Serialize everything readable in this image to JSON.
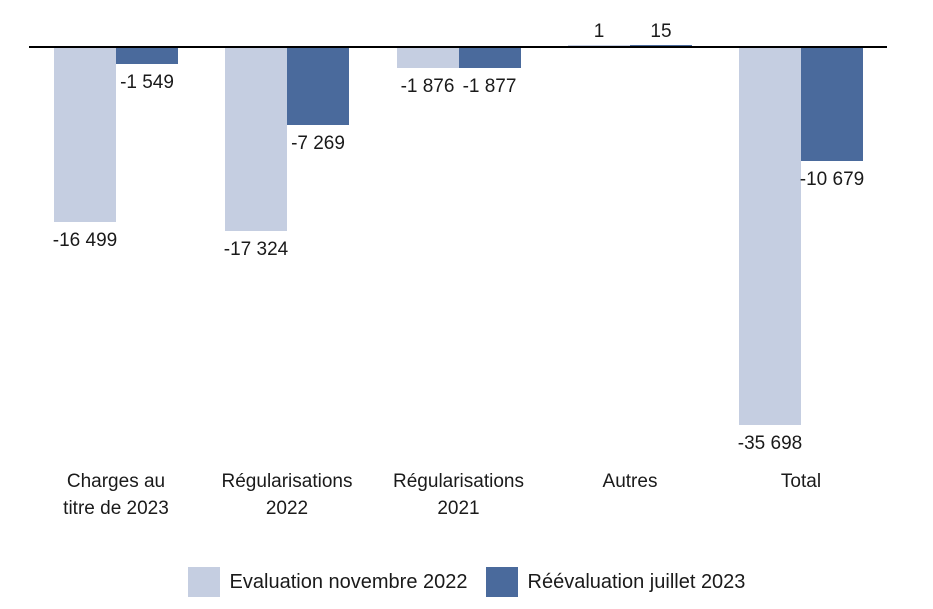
{
  "chart_data": {
    "type": "bar",
    "title": "",
    "xlabel": "",
    "ylabel": "",
    "value_axis_visible": false,
    "grid": false,
    "baseline_value": 0,
    "ylim": [
      -38000,
      2000
    ],
    "legend_position": "bottom",
    "background_color": "#ffffff",
    "axis_line_color": "#000000",
    "text_color": "#1a1a1a",
    "categories": [
      {
        "label": "Charges au titre de 2023",
        "lines": [
          "Charges au",
          "titre de 2023"
        ]
      },
      {
        "label": "Régularisations 2022",
        "lines": [
          "Régularisations",
          "2022"
        ]
      },
      {
        "label": "Régularisations 2021",
        "lines": [
          "Régularisations",
          "2021"
        ]
      },
      {
        "label": "Autres",
        "lines": [
          "Autres"
        ]
      },
      {
        "label": "Total",
        "lines": [
          "Total"
        ]
      }
    ],
    "series": [
      {
        "name": "Evaluation novembre 2022",
        "color": "#c5cee1",
        "values": [
          -16499,
          -17324,
          -1876,
          1,
          -35698
        ],
        "labels": [
          "-16 499",
          "-17 324",
          "-1 876",
          "1",
          "-35 698"
        ]
      },
      {
        "name": "Réévaluation juillet 2023",
        "color": "#4a6a9c",
        "values": [
          -1549,
          -7269,
          -1877,
          15,
          -10679
        ],
        "labels": [
          "-1 549",
          "-7 269",
          "-1 877",
          "15",
          "-10 679"
        ]
      }
    ]
  }
}
